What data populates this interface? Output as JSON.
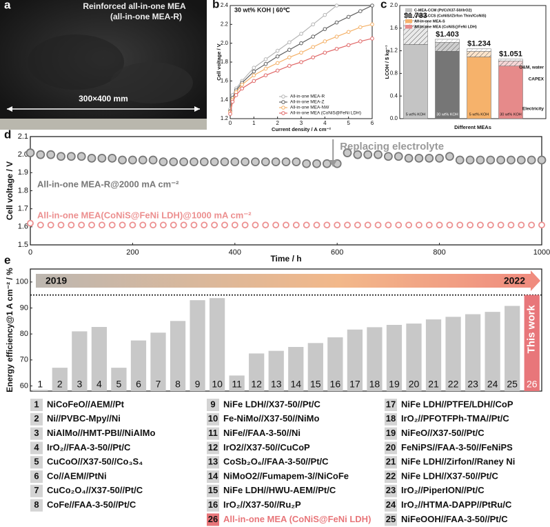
{
  "panel_a": {
    "label": "a",
    "title": "Reinforced all-in-one MEA",
    "subtitle": "(all-in-one MEA-R)",
    "dimension": "300×400 mm"
  },
  "chart_data": [
    {
      "type": "line",
      "label": "b",
      "title": "30 wt% KOH | 60℃",
      "x_label": "Current density / A cm⁻²",
      "y_label": "Cell voltage / V",
      "x": [
        0,
        0.1,
        0.25,
        0.5,
        1,
        1.5,
        2,
        2.5,
        3,
        3.5,
        4,
        4.5,
        5,
        5.5,
        6
      ],
      "series": [
        {
          "name": "All-in-one MEA-R",
          "color": "#b5b5b5",
          "values": [
            1.3,
            1.45,
            1.52,
            1.6,
            1.74,
            1.83,
            1.92,
            2.01,
            2.1,
            2.2,
            2.3,
            2.4,
            null,
            null,
            null
          ]
        },
        {
          "name": "All-in-one MEA-Z",
          "color": "#5f5f5f",
          "values": [
            1.28,
            1.42,
            1.5,
            1.58,
            1.7,
            1.78,
            1.86,
            1.93,
            2.0,
            2.07,
            2.15,
            2.22,
            2.28,
            2.34,
            2.4
          ]
        },
        {
          "name": "All-in-one MEA-NW",
          "color": "#f4b066",
          "values": [
            1.27,
            1.4,
            1.48,
            1.56,
            1.66,
            1.73,
            1.79,
            1.85,
            1.9,
            1.96,
            2.02,
            2.07,
            2.12,
            2.17,
            2.2
          ]
        },
        {
          "name": "All-in-one MEA (CoNiS@FeNi LDH)",
          "color": "#e06666",
          "values": [
            1.25,
            1.38,
            1.45,
            1.52,
            1.6,
            1.66,
            1.71,
            1.76,
            1.8,
            1.85,
            1.9,
            1.94,
            1.98,
            2.02,
            2.05
          ]
        }
      ],
      "xlim": [
        0,
        6
      ],
      "xticks": [
        0,
        1,
        2,
        3,
        4,
        5,
        6
      ],
      "ylim": [
        1.2,
        2.4
      ],
      "yticks": [
        1.2,
        1.4,
        1.6,
        1.8,
        {
          "value": 2,
          "label": "2.0"
        },
        2.2,
        2.4
      ],
      "legend": "lower right"
    },
    {
      "type": "stacked-bar",
      "label": "c",
      "x_label": "Different MEAs",
      "y_label": "LCOH / $ kg⁻¹",
      "categories": [
        "C-MEA-CCM (Pt/C//X37-50//IrO2)",
        "C-MEA-CCS (CoNiS//Zirfon Thin//CoNiS)",
        "All-in-one MEA-S",
        "All-in-one MEA (CoNiS@FeNi LDH)"
      ],
      "category_colors": [
        "#c4c4c4",
        "#767676",
        "#f6b26b",
        "#e68a8a"
      ],
      "bar_labels": [
        "5 wt% KOH",
        "30 wt% KOH",
        "5 wt% KOH",
        "30 wt% KOH"
      ],
      "series": [
        {
          "name": "Electricity",
          "pattern": "solid",
          "values": [
            1.31,
            1.19,
            1.09,
            0.93
          ]
        },
        {
          "name": "CAPEX",
          "pattern": "hatch",
          "values": [
            0.33,
            0.16,
            0.1,
            0.09
          ]
        },
        {
          "name": "O&M, water",
          "pattern": "light-hatch",
          "values": [
            0.093,
            0.053,
            0.044,
            0.031
          ]
        }
      ],
      "totals": {
        "values": [
          1.733,
          1.403,
          1.234,
          1.051
        ],
        "value_labels": [
          "$1.733",
          "$1.403",
          "$1.234",
          "$1.051"
        ]
      },
      "ylim": [
        0,
        2
      ],
      "yticks": [
        {
          "value": 0,
          "label": "0.0"
        },
        0.4,
        0.8,
        1.2,
        1.6,
        {
          "value": 2,
          "label": "2.0"
        }
      ],
      "legend": "upper left"
    },
    {
      "type": "scatter-line",
      "label": "d",
      "x_label": "Time / h",
      "y_label": "Cell voltage / V",
      "x": [
        0,
        20,
        40,
        60,
        80,
        100,
        120,
        140,
        160,
        180,
        200,
        220,
        240,
        260,
        280,
        300,
        320,
        340,
        360,
        380,
        400,
        420,
        440,
        460,
        480,
        500,
        520,
        540,
        560,
        580,
        600,
        620,
        640,
        660,
        680,
        700,
        720,
        740,
        760,
        780,
        800,
        820,
        840,
        860,
        880,
        900,
        920,
        940,
        960,
        980,
        1000
      ],
      "series": [
        {
          "name": "All-in-one MEA-R@2000 mA cm⁻²",
          "color": "#777777",
          "values": [
            2.01,
            2.0,
            2.0,
            1.99,
            1.99,
            1.99,
            1.98,
            1.98,
            1.98,
            1.97,
            1.97,
            1.97,
            1.97,
            1.96,
            1.96,
            1.96,
            1.96,
            1.96,
            1.96,
            1.96,
            1.96,
            1.96,
            1.96,
            1.96,
            1.96,
            1.96,
            1.96,
            1.95,
            1.95,
            1.95,
            1.95,
            2.01,
            2.0,
            2.0,
            2.0,
            1.99,
            1.99,
            1.98,
            1.98,
            1.98,
            1.98,
            1.99,
            1.97,
            1.97,
            1.97,
            1.97,
            1.97,
            1.97,
            1.97,
            1.97,
            1.97
          ]
        },
        {
          "name": "All-in-one MEA(CoNiS@FeNi LDH)@1000 mA cm⁻²",
          "color": "#ec8f8f",
          "values": [
            1.62,
            1.61,
            1.61,
            1.61,
            1.61,
            1.61,
            1.61,
            1.61,
            1.61,
            1.61,
            1.61,
            1.61,
            1.61,
            1.61,
            1.61,
            1.61,
            1.61,
            1.61,
            1.61,
            1.61,
            1.61,
            1.61,
            1.61,
            1.61,
            1.61,
            1.61,
            1.61,
            1.61,
            1.61,
            1.61,
            1.61,
            1.61,
            1.61,
            1.61,
            1.61,
            1.61,
            1.61,
            1.61,
            1.61,
            1.61,
            1.61,
            1.61,
            1.61,
            1.61,
            1.61,
            1.61,
            1.61,
            1.61,
            1.61,
            1.61,
            1.61
          ]
        }
      ],
      "annotation": {
        "text": "Replacing electrolyte",
        "x": 600
      },
      "xlim": [
        0,
        1000
      ],
      "xticks": [
        0,
        200,
        400,
        600,
        800,
        1000
      ],
      "ylim": [
        1.5,
        2.1
      ],
      "yticks": [
        1.5,
        1.6,
        1.7,
        1.8,
        1.9,
        {
          "value": 2,
          "label": "2.0"
        },
        2.1
      ]
    },
    {
      "type": "bar",
      "label": "e",
      "y_label": "Energy efficiency@1 A cm⁻² / %",
      "categories": [
        "1",
        "2",
        "3",
        "4",
        "5",
        "6",
        "7",
        "8",
        "9",
        "10",
        "11",
        "12",
        "13",
        "14",
        "15",
        "16",
        "17",
        "18",
        "19",
        "20",
        "21",
        "22",
        "23",
        "24",
        "25",
        "26"
      ],
      "values": [
        58.5,
        67,
        81,
        82.7,
        67,
        77.5,
        80.5,
        85,
        93,
        93.8,
        64,
        72.5,
        73.5,
        75,
        76.5,
        78.7,
        81.7,
        82.6,
        83.5,
        84,
        85.6,
        86.6,
        87.6,
        88.5,
        90.8,
        95
      ],
      "colors": [
        "#c8c8c8",
        "#c8c8c8",
        "#c8c8c8",
        "#c8c8c8",
        "#c8c8c8",
        "#c8c8c8",
        "#c8c8c8",
        "#c8c8c8",
        "#c8c8c8",
        "#c8c8c8",
        "#c8c8c8",
        "#c8c8c8",
        "#c8c8c8",
        "#c8c8c8",
        "#c8c8c8",
        "#c8c8c8",
        "#c8c8c8",
        "#c8c8c8",
        "#c8c8c8",
        "#c8c8c8",
        "#c8c8c8",
        "#c8c8c8",
        "#c8c8c8",
        "#c8c8c8",
        "#c8c8c8",
        "#e8767a"
      ],
      "highlight_label": "This work",
      "timeline": {
        "start": "2019",
        "end": "2022"
      },
      "reference_line": 95,
      "ylim": [
        58,
        105
      ],
      "yticks": [
        60,
        70,
        80,
        90,
        100
      ],
      "legend_entries": [
        "NiCoFeO//AEM//Pt",
        "Ni//PVBC-Mpy//Ni",
        "NiAlMo//HMT-PBI//NiAlMo",
        "IrO₂//FAA-3-50//Pt/C",
        "CuCoO//X37-50//Co₃S₄",
        "Co//AEM//PtNi",
        "CuCo₂O₄//X37-50//Pt/C",
        "CoFe//FAA-3-50//Pt/C",
        "NiFe LDH//X37-50//Pt/C",
        "Fe-NiMo//X37-50//NiMo",
        "NiFe//FAA-3-50//Ni",
        "IrO2//X37-50//CuCoP",
        "CoSb₂O₆//FAA-3-50//Pt/C",
        "NiMoO2//Fumapem-3//NiCoFe",
        "NiFe LDH//HWU-AEM//Pt/C",
        "IrO₂//X37-50//Ru₂P",
        "NiFe LDH//PTFE/LDH//CoP",
        "IrO₂//PFOTFPh-TMA//Pt/C",
        "NiFeO//X37-50//Pt/C",
        "FeNiPS//FAA-3-50//FeNiPS",
        "NiFe LDH//Zirfon//Raney Ni",
        "NiFe LDH//X37-50//Pt/C",
        "IrO₂//PiperION//Pt/C",
        "IrO₂//HTMA-DAPP//PtRu/C",
        "NiFeOOH//FAA-3-50//Pt/C",
        "All-in-one MEA (CoNiS@FeNi LDH)"
      ]
    }
  ]
}
